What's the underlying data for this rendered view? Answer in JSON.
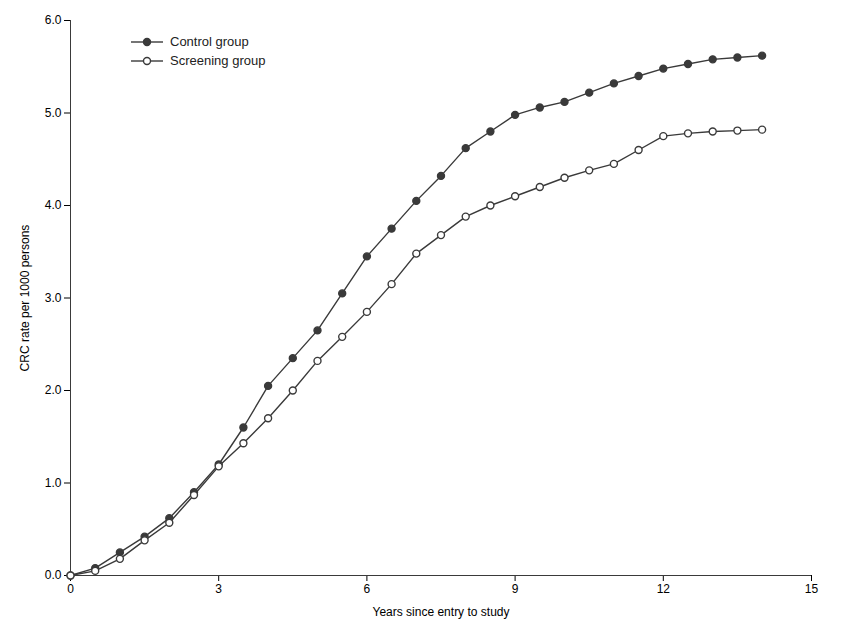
{
  "chart_data": {
    "type": "line",
    "xlabel": "Years since entry to study",
    "ylabel": "CRC rate per 1000 persons",
    "x": [
      0,
      0.5,
      1.0,
      1.5,
      2.0,
      2.5,
      3.0,
      3.5,
      4.0,
      4.5,
      5.0,
      5.5,
      6.0,
      6.5,
      7.0,
      7.5,
      8.0,
      8.5,
      9.0,
      9.5,
      10.0,
      10.5,
      11.0,
      11.5,
      12.0,
      12.5,
      13.0,
      13.5,
      14.0
    ],
    "series": [
      {
        "name": "Control group",
        "color": "#3a3a3a",
        "marker": "circle",
        "values": [
          0,
          0.08,
          0.25,
          0.42,
          0.62,
          0.9,
          1.2,
          1.6,
          2.05,
          2.35,
          2.65,
          3.05,
          3.45,
          3.75,
          4.05,
          4.32,
          4.62,
          4.8,
          4.98,
          5.06,
          5.12,
          5.22,
          5.32,
          5.4,
          5.48,
          5.53,
          5.58,
          5.6,
          5.62
        ]
      },
      {
        "name": "Screening group",
        "color": "#3a3a3a",
        "marker": "open_circle",
        "values": [
          0,
          0.05,
          0.18,
          0.38,
          0.57,
          0.87,
          1.18,
          1.43,
          1.7,
          2.0,
          2.32,
          2.58,
          2.85,
          3.15,
          3.48,
          3.68,
          3.88,
          4.0,
          4.1,
          4.2,
          4.3,
          4.38,
          4.45,
          4.6,
          4.75,
          4.78,
          4.8,
          4.81,
          4.82
        ]
      }
    ],
    "xlim": [
      0,
      15
    ],
    "xticks": [
      0,
      3,
      6,
      9,
      12,
      15
    ],
    "ylim": [
      0,
      6
    ],
    "yticks": [
      0,
      1,
      2,
      3,
      4,
      5,
      6
    ],
    "grid": false,
    "legend": "upper left"
  }
}
